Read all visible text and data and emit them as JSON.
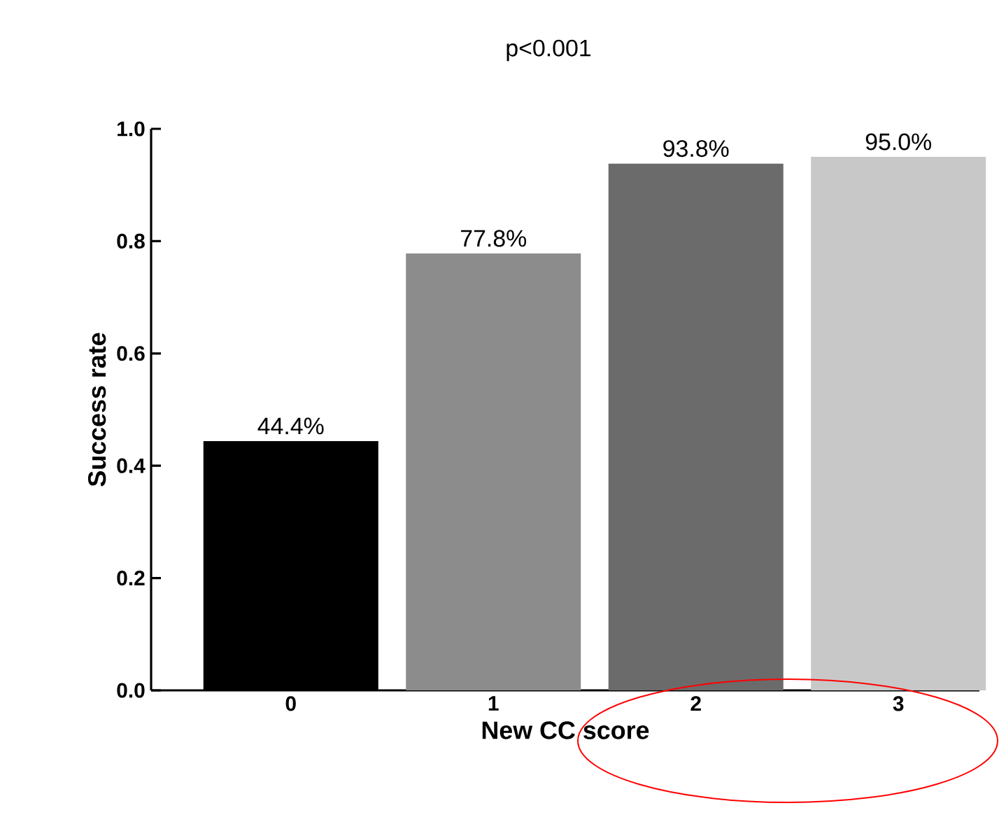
{
  "chart_data": {
    "type": "bar",
    "xlabel": "New CC score",
    "ylabel": "Success rate",
    "annotations": [
      "p<0.001"
    ],
    "categories": [
      "0",
      "1",
      "2",
      "3"
    ],
    "values": [
      0.444,
      0.778,
      0.938,
      0.95
    ],
    "value_labels": [
      "44.4%",
      "77.8%",
      "93.8%",
      "95.0%"
    ],
    "colors": [
      "#000000",
      "#8c8c8d",
      "#6b6b6b",
      "#c8c8c8"
    ],
    "ylim": [
      0,
      1
    ],
    "yticks": [
      {
        "value": 0,
        "label": "0.0"
      },
      {
        "value": 0.2,
        "label": "0.2"
      },
      {
        "value": 0.4,
        "label": "0.4"
      },
      {
        "value": 0.6,
        "label": "0.6"
      },
      {
        "value": 0.8,
        "label": "0.8"
      },
      {
        "value": 1,
        "label": "1.0"
      }
    ]
  }
}
